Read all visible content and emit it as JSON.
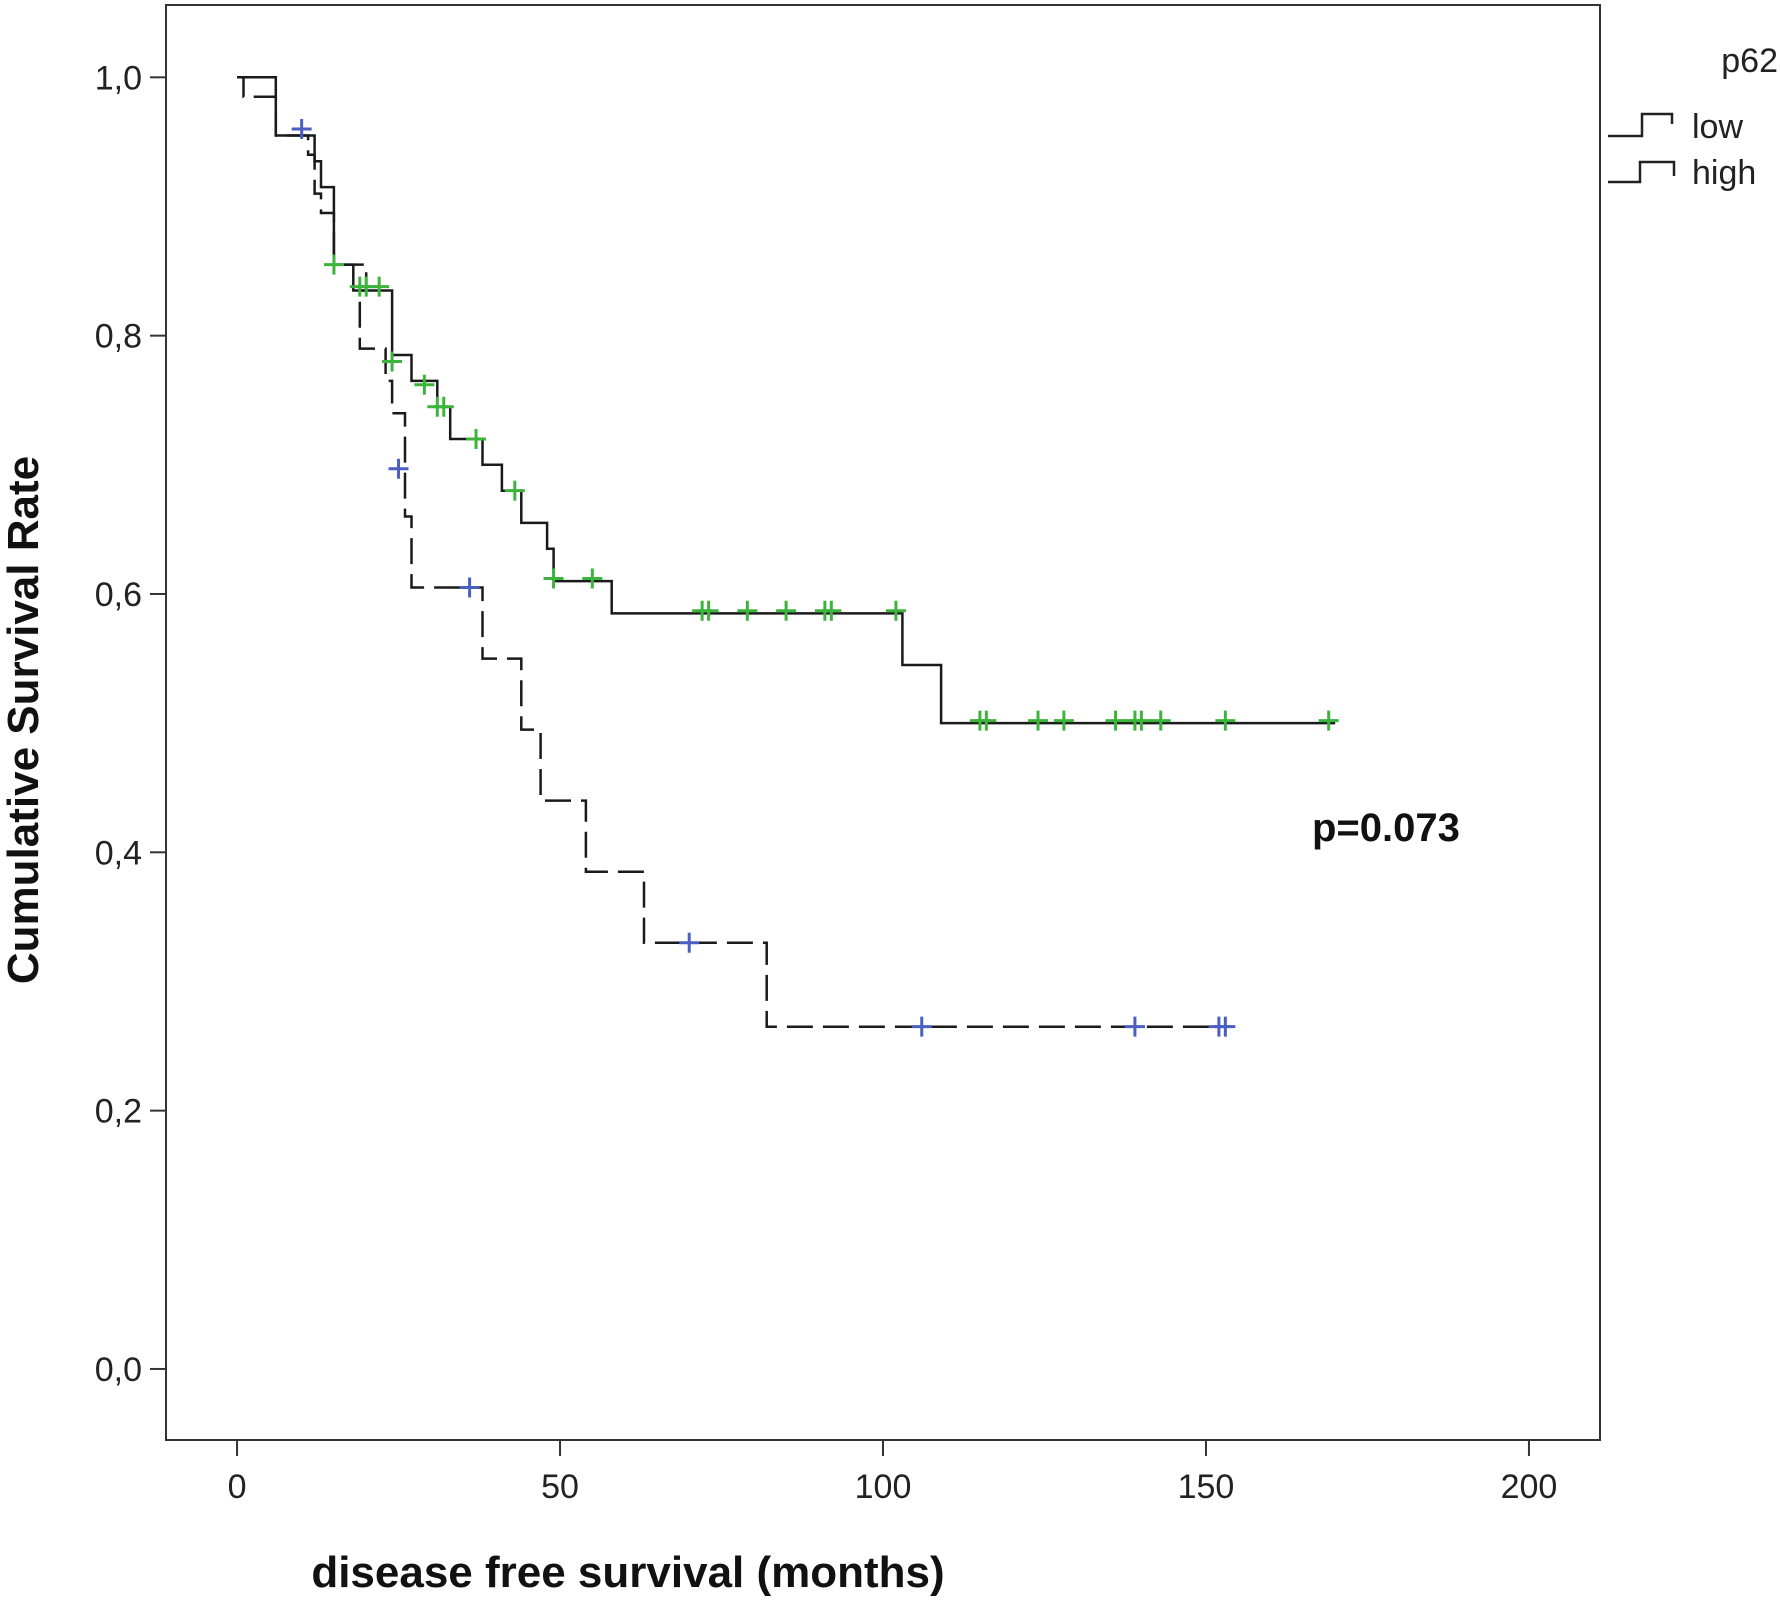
{
  "chart_data": {
    "type": "line",
    "subtype": "kaplan-meier",
    "title": "",
    "xlabel": "disease free survival (months)",
    "ylabel": "Cumulative Survival Rate",
    "xlim": [
      -11,
      211
    ],
    "ylim": [
      -0.055,
      1.056
    ],
    "x_ticks": [
      0,
      50,
      100,
      150,
      200
    ],
    "x_tick_labels": [
      "0",
      "50",
      "100",
      "150",
      "200"
    ],
    "y_ticks": [
      0,
      0.2,
      0.4,
      0.6,
      0.8,
      1.0
    ],
    "y_tick_labels": [
      "0,0",
      "0,2",
      "0,4",
      "0,6",
      "0,8",
      "1,0"
    ],
    "grid": false,
    "legend_title": "p62",
    "legend_position": "top-right, outside plot",
    "annotation": "p=0.073",
    "series": [
      {
        "name": "low",
        "line_style": "dashed",
        "censor_color": "#4a5fc1",
        "steps": [
          [
            0,
            1.0
          ],
          [
            1,
            0.985
          ],
          [
            6,
            0.97
          ],
          [
            6,
            0.955
          ],
          [
            11,
            0.94
          ],
          [
            12,
            0.91
          ],
          [
            13,
            0.895
          ],
          [
            15,
            0.855
          ],
          [
            20,
            0.835
          ],
          [
            19,
            0.79
          ],
          [
            23,
            0.765
          ],
          [
            24,
            0.74
          ],
          [
            26,
            0.695
          ],
          [
            26,
            0.66
          ],
          [
            27,
            0.605
          ],
          [
            38,
            0.55
          ],
          [
            44,
            0.495
          ],
          [
            47,
            0.44
          ],
          [
            54,
            0.385
          ],
          [
            63,
            0.33
          ],
          [
            82,
            0.265
          ],
          [
            154,
            0.265
          ]
        ],
        "censored": [
          [
            10,
            0.96
          ],
          [
            25,
            0.697
          ],
          [
            36,
            0.605
          ],
          [
            70,
            0.33
          ],
          [
            106,
            0.265
          ],
          [
            139,
            0.265
          ],
          [
            152,
            0.265
          ],
          [
            153,
            0.265
          ]
        ]
      },
      {
        "name": "high",
        "line_style": "solid",
        "censor_color": "#3cb43c",
        "steps": [
          [
            0,
            1.0
          ],
          [
            6,
            0.955
          ],
          [
            12,
            0.935
          ],
          [
            13,
            0.915
          ],
          [
            15,
            0.855
          ],
          [
            18,
            0.835
          ],
          [
            24,
            0.785
          ],
          [
            27,
            0.765
          ],
          [
            31,
            0.745
          ],
          [
            33,
            0.72
          ],
          [
            38,
            0.7
          ],
          [
            41,
            0.68
          ],
          [
            44,
            0.655
          ],
          [
            48,
            0.635
          ],
          [
            49,
            0.61
          ],
          [
            58,
            0.585
          ],
          [
            103,
            0.545
          ],
          [
            109,
            0.5
          ],
          [
            170,
            0.5
          ]
        ],
        "censored": [
          [
            15,
            0.855
          ],
          [
            19,
            0.838
          ],
          [
            20,
            0.838
          ],
          [
            22,
            0.838
          ],
          [
            24,
            0.78
          ],
          [
            29,
            0.762
          ],
          [
            31,
            0.745
          ],
          [
            32,
            0.745
          ],
          [
            37,
            0.72
          ],
          [
            43,
            0.68
          ],
          [
            49,
            0.612
          ],
          [
            55,
            0.612
          ],
          [
            72,
            0.587
          ],
          [
            73,
            0.587
          ],
          [
            79,
            0.587
          ],
          [
            85,
            0.587
          ],
          [
            91,
            0.587
          ],
          [
            92,
            0.587
          ],
          [
            102,
            0.587
          ],
          [
            115,
            0.502
          ],
          [
            116,
            0.502
          ],
          [
            124,
            0.502
          ],
          [
            128,
            0.502
          ],
          [
            136,
            0.502
          ],
          [
            139,
            0.502
          ],
          [
            140,
            0.502
          ],
          [
            143,
            0.502
          ],
          [
            153,
            0.502
          ],
          [
            169,
            0.502
          ]
        ]
      }
    ]
  }
}
